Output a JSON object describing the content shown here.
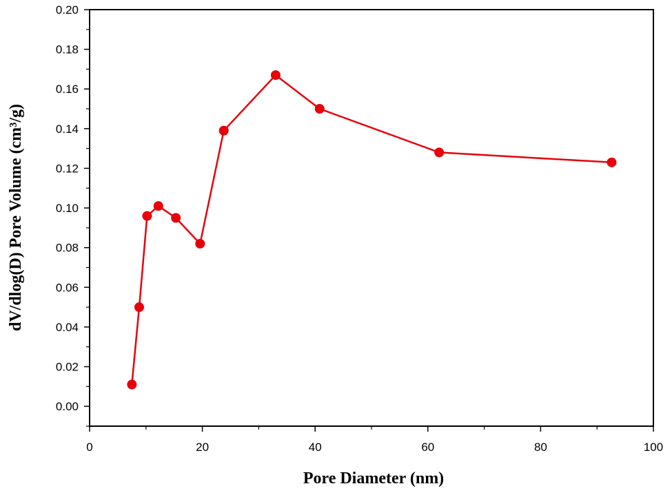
{
  "chart_data": {
    "type": "line",
    "title": "",
    "xlabel": "Pore Diameter (nm)",
    "ylabel": "dV/dlog(D) Pore Volume (cm³/g)",
    "xlim": [
      0,
      100
    ],
    "ylim": [
      -0.01,
      0.2
    ],
    "x_ticks": [
      "0",
      "20",
      "40",
      "60",
      "80",
      "100"
    ],
    "y_ticks": [
      "0.00",
      "0.02",
      "0.04",
      "0.06",
      "0.08",
      "0.10",
      "0.12",
      "0.14",
      "0.16",
      "0.18",
      "0.20"
    ],
    "grid": false,
    "legend": "none",
    "series": [
      {
        "color": "#e8000b",
        "marker": "circle",
        "x": [
          7.5,
          8.8,
          10.2,
          12.2,
          15.3,
          19.6,
          23.8,
          33.0,
          40.8,
          62.0,
          92.6
        ],
        "y": [
          0.011,
          0.05,
          0.096,
          0.101,
          0.095,
          0.082,
          0.139,
          0.167,
          0.15,
          0.128,
          0.123
        ]
      }
    ]
  }
}
